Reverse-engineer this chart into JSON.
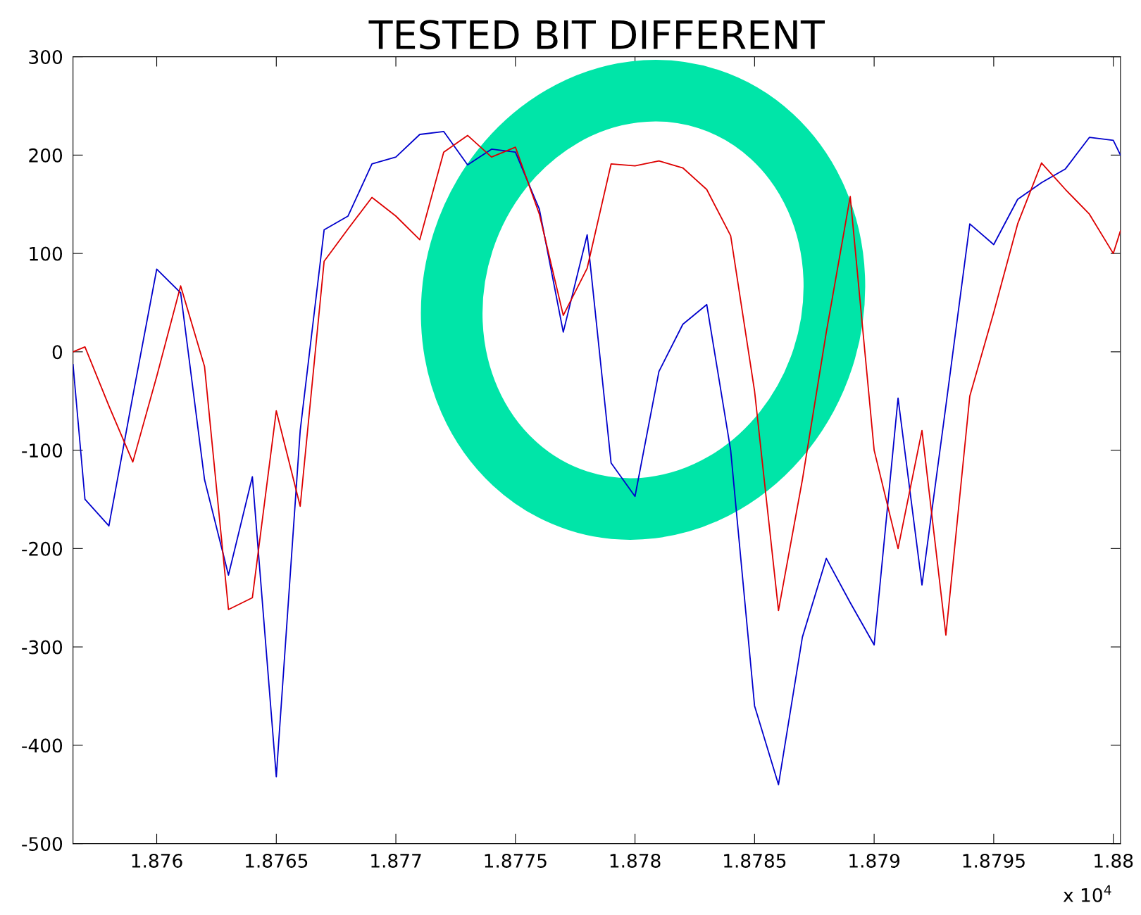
{
  "chart_data": {
    "type": "line",
    "title": "TESTED BIT DIFFERENT",
    "xlim": [
      1.87565,
      1.88003
    ],
    "xticks": [
      1.876,
      1.8765,
      1.877,
      1.8775,
      1.878,
      1.8785,
      1.879,
      1.8795,
      1.88
    ],
    "ylim": [
      -500,
      300
    ],
    "yticks": [
      -500,
      -400,
      -300,
      -200,
      -100,
      0,
      100,
      200,
      300
    ],
    "annotations": [
      "x 10$^{4}$"
    ],
    "grid": false,
    "marker": "none",
    "line_style": "solid",
    "series": [
      {
        "color": "#0000cc",
        "x": [
          1.87565,
          1.8757,
          1.8758,
          1.8759,
          1.876,
          1.8761,
          1.8762,
          1.8763,
          1.8764,
          1.8765,
          1.8766,
          1.8767,
          1.8768,
          1.8769,
          1.877,
          1.8771,
          1.8772,
          1.8773,
          1.8774,
          1.8775,
          1.8776,
          1.8777,
          1.8778,
          1.8779,
          1.878,
          1.8781,
          1.8782,
          1.8783,
          1.8784,
          1.8785,
          1.8786,
          1.8787,
          1.8788,
          1.8789,
          1.879,
          1.8791,
          1.8792,
          1.8793,
          1.8794,
          1.8795,
          1.8796,
          1.8797,
          1.8798,
          1.8799,
          1.88,
          1.88003
        ],
        "values": [
          -13,
          -150,
          -177,
          -45,
          84,
          60,
          -130,
          -227,
          -127,
          -432,
          -80,
          124,
          138,
          191,
          198,
          221,
          224,
          190,
          206,
          203,
          145,
          20,
          119,
          -113,
          -147,
          -20,
          28,
          48,
          -100,
          -360,
          -440,
          -290,
          -210,
          -255,
          -298,
          -47,
          -237,
          -55,
          130,
          109,
          155,
          172,
          186,
          218,
          215,
          200
        ]
      },
      {
        "color": "#dd0000",
        "x": [
          1.87565,
          1.8757,
          1.8758,
          1.8759,
          1.876,
          1.8761,
          1.8762,
          1.8763,
          1.8764,
          1.8765,
          1.8766,
          1.8767,
          1.8768,
          1.8769,
          1.877,
          1.8771,
          1.8772,
          1.8773,
          1.8774,
          1.8775,
          1.8776,
          1.8777,
          1.8778,
          1.8779,
          1.878,
          1.8781,
          1.8782,
          1.8783,
          1.8784,
          1.8785,
          1.8786,
          1.8787,
          1.8788,
          1.8789,
          1.879,
          1.8791,
          1.8792,
          1.8793,
          1.8794,
          1.8795,
          1.8796,
          1.8797,
          1.8798,
          1.8799,
          1.88,
          1.88003
        ],
        "values": [
          0,
          5,
          -55,
          -112,
          -25,
          67,
          -15,
          -262,
          -250,
          -60,
          -157,
          92,
          125,
          157,
          138,
          114,
          203,
          220,
          198,
          208,
          140,
          37,
          85,
          191,
          189,
          194,
          187,
          165,
          118,
          -40,
          -263,
          -130,
          20,
          158,
          -100,
          -200,
          -80,
          -288,
          -45,
          40,
          130,
          192,
          165,
          140,
          100,
          123
        ]
      }
    ]
  }
}
